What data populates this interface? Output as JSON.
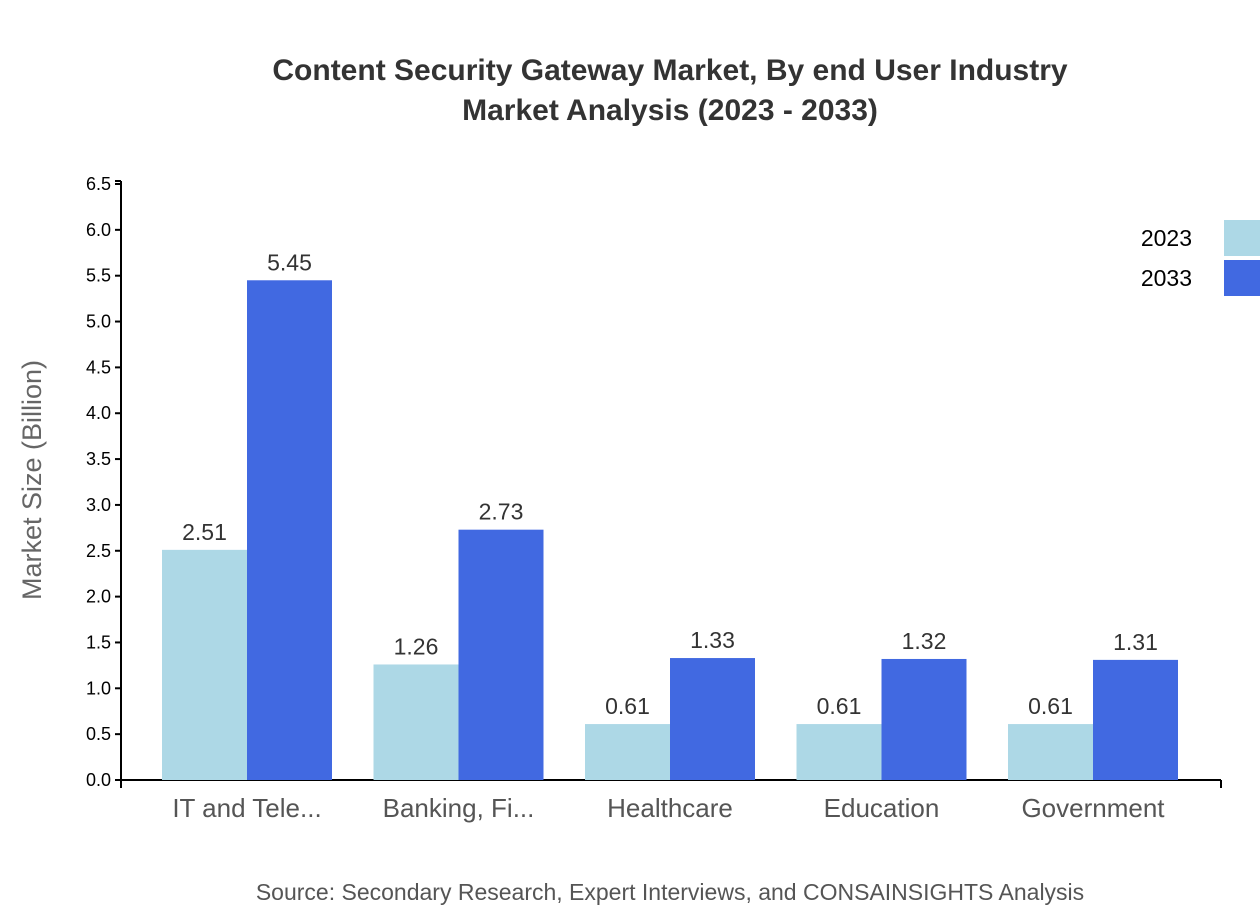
{
  "chart_data": {
    "type": "bar",
    "title": "Content Security Gateway Market, By end User Industry",
    "subtitle": "Market Analysis (2023 - 2033)",
    "xlabel": "",
    "ylabel": "Market Size (Billion)",
    "ylim": [
      0,
      6.5
    ],
    "yticks": [
      "0.0",
      "0.5",
      "1.0",
      "1.5",
      "2.0",
      "2.5",
      "3.0",
      "3.5",
      "4.0",
      "4.5",
      "5.0",
      "5.5",
      "6.0",
      "6.5"
    ],
    "categories": [
      "IT and Tele...",
      "Banking, Fi...",
      "Healthcare",
      "Education",
      "Government"
    ],
    "series": [
      {
        "name": "2023",
        "color": "#add8e6",
        "values": [
          2.51,
          1.26,
          0.61,
          0.61,
          0.61
        ]
      },
      {
        "name": "2033",
        "color": "#4169e1",
        "values": [
          5.45,
          2.73,
          1.33,
          1.32,
          1.31
        ]
      }
    ],
    "grid": false,
    "legend_position": "top-right",
    "source": "Source: Secondary Research, Expert Interviews, and CONSAINSIGHTS Analysis"
  }
}
